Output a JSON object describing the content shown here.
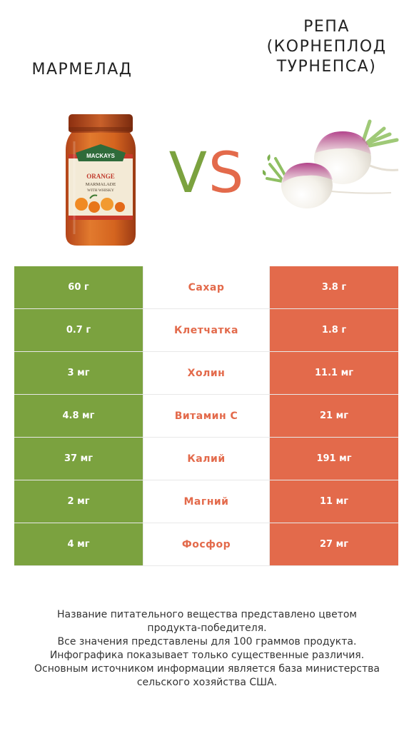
{
  "products": {
    "left": {
      "name": "Мармелад",
      "color": "#7ba23f"
    },
    "right": {
      "name": "Репа\n(корнеплод\nтурнепса)",
      "color": "#e36a4b"
    }
  },
  "vs": {
    "v": "V",
    "s": "S"
  },
  "jar_label": {
    "brand": "MACKAYS",
    "line1": "ORANGE",
    "line2": "MARMALADE",
    "line3": "WITH WHISKY"
  },
  "rows": [
    {
      "nutrient": "Сахар",
      "left": "60 г",
      "right": "3.8 г",
      "winner": "left"
    },
    {
      "nutrient": "Клетчатка",
      "left": "0.7 г",
      "right": "1.8 г",
      "winner": "right"
    },
    {
      "nutrient": "Холин",
      "left": "3 мг",
      "right": "11.1 мг",
      "winner": "right"
    },
    {
      "nutrient": "Витамин C",
      "left": "4.8 мг",
      "right": "21 мг",
      "winner": "right"
    },
    {
      "nutrient": "Калий",
      "left": "37 мг",
      "right": "191 мг",
      "winner": "right"
    },
    {
      "nutrient": "Магний",
      "left": "2 мг",
      "right": "11 мг",
      "winner": "right"
    },
    {
      "nutrient": "Фосфор",
      "left": "4 мг",
      "right": "27 мг",
      "winner": "right"
    }
  ],
  "footnote": [
    "Название питательного вещества представлено цветом",
    "продукта-победителя.",
    "Все значения представлены для 100 граммов продукта.",
    "Инфографика показывает только существенные различия.",
    "Основным источником информации является база министерства",
    "сельского хозяйства США."
  ]
}
